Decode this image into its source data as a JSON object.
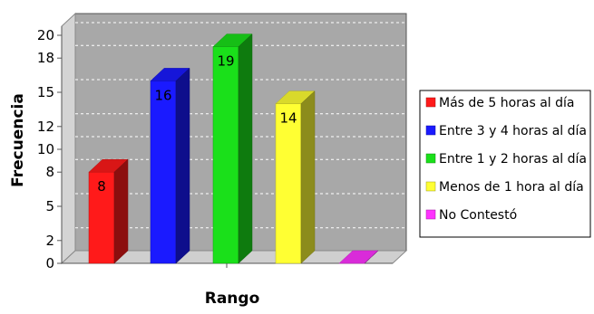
{
  "chart_data": {
    "type": "bar",
    "title": "",
    "xlabel": "Rango",
    "ylabel": "Frecuencia",
    "ylim": [
      0,
      20
    ],
    "y_ticks": [
      0,
      2,
      5,
      8,
      10,
      12,
      15,
      18,
      20
    ],
    "y_tick_labels": [
      "0",
      "2",
      "5",
      "8",
      "10",
      "12",
      "15",
      "18",
      "20"
    ],
    "grid": true,
    "legend_position": "right",
    "series": [
      {
        "name": "Más de 5 horas al día",
        "value": 8,
        "label": "8",
        "color": "#ff1a1a"
      },
      {
        "name": "Entre 3 y 4 horas al día",
        "value": 16,
        "label": "16",
        "color": "#1a1aff"
      },
      {
        "name": "Entre 1 y 2 horas al día",
        "value": 19,
        "label": "19",
        "color": "#1ae01a"
      },
      {
        "name": "Menos de 1 hora al día",
        "value": 14,
        "label": "14",
        "color": "#ffff33"
      },
      {
        "name": "No Contestó",
        "value": 0,
        "label": "",
        "color": "#ff33ff"
      }
    ],
    "colors": {
      "plot_background": "#a8a8a8",
      "wall": "#d4d4d4",
      "floor": "#cfcfcf"
    }
  }
}
